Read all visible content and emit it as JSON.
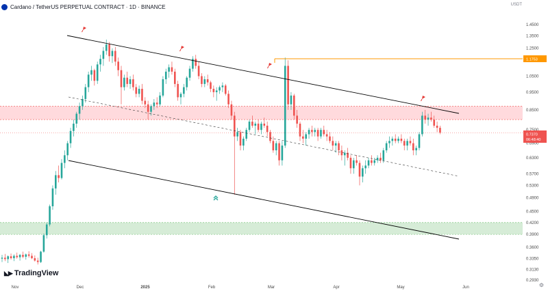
{
  "header": {
    "symbol_text": "Cardano / TetherUS PERPETUAL CONTRACT · 1D · BINANCE",
    "quote_currency": "USDT"
  },
  "brand": {
    "name": "TradingView",
    "logo_icon": "tradingview-logo-icon"
  },
  "price_tags": {
    "resistance_level": "1.1753",
    "current_price": "0.7370",
    "countdown": "06:48:40"
  },
  "colors": {
    "up": "#26a69a",
    "down": "#ef5350",
    "level_line": "#ff9800",
    "resistance_zone": "#ffcdd2",
    "support_zone": "#c8e6c9",
    "channel": "#000000"
  },
  "chart_data": {
    "type": "candlestick",
    "title": "Cardano / TetherUS PERPETUAL CONTRACT · 1D · BINANCE",
    "x_tick_labels": [
      "Nov",
      "Dec",
      "2025",
      "Feb",
      "Mar",
      "Apr",
      "May",
      "Jun"
    ],
    "y_tick_labels": [
      "1.4500",
      "1.3500",
      "1.2500",
      "1.1750",
      "1.0500",
      "0.9500",
      "0.8500",
      "0.7500",
      "0.6900",
      "0.6300",
      "0.5700",
      "0.5300",
      "0.4900",
      "0.4500",
      "0.4200",
      "0.3900",
      "0.3600",
      "0.3350",
      "0.3130",
      "0.2930"
    ],
    "y_scale": "log",
    "ylim": [
      0.293,
      1.45
    ],
    "horizontal_level": 1.1753,
    "current_price": 0.737,
    "resistance_zone": [
      0.8,
      0.87
    ],
    "support_zone": [
      0.39,
      0.42
    ],
    "series": [
      {
        "values": [
          [
            0.335,
            0.343,
            0.328,
            0.337
          ],
          [
            0.337,
            0.345,
            0.33,
            0.334
          ],
          [
            0.334,
            0.342,
            0.326,
            0.34
          ],
          [
            0.34,
            0.346,
            0.333,
            0.336
          ],
          [
            0.336,
            0.344,
            0.33,
            0.341
          ],
          [
            0.341,
            0.348,
            0.335,
            0.338
          ],
          [
            0.338,
            0.345,
            0.331,
            0.343
          ],
          [
            0.343,
            0.35,
            0.336,
            0.339
          ],
          [
            0.339,
            0.346,
            0.333,
            0.344
          ],
          [
            0.344,
            0.351,
            0.337,
            0.341
          ],
          [
            0.341,
            0.347,
            0.334,
            0.336
          ],
          [
            0.336,
            0.342,
            0.329,
            0.331
          ],
          [
            0.331,
            0.337,
            0.323,
            0.328
          ],
          [
            0.328,
            0.352,
            0.326,
            0.35
          ],
          [
            0.35,
            0.392,
            0.348,
            0.388
          ],
          [
            0.388,
            0.42,
            0.38,
            0.415
          ],
          [
            0.415,
            0.47,
            0.41,
            0.465
          ],
          [
            0.465,
            0.53,
            0.455,
            0.52
          ],
          [
            0.52,
            0.58,
            0.5,
            0.565
          ],
          [
            0.565,
            0.6,
            0.54,
            0.555
          ],
          [
            0.555,
            0.625,
            0.55,
            0.61
          ],
          [
            0.61,
            0.66,
            0.59,
            0.64
          ],
          [
            0.64,
            0.7,
            0.62,
            0.69
          ],
          [
            0.69,
            0.76,
            0.67,
            0.745
          ],
          [
            0.745,
            0.8,
            0.72,
            0.78
          ],
          [
            0.78,
            0.84,
            0.76,
            0.83
          ],
          [
            0.83,
            0.89,
            0.8,
            0.87
          ],
          [
            0.87,
            0.93,
            0.85,
            0.91
          ],
          [
            0.91,
            1.0,
            0.89,
            0.98
          ],
          [
            0.98,
            1.08,
            0.95,
            1.06
          ],
          [
            1.06,
            1.12,
            1.02,
            1.09
          ],
          [
            1.09,
            1.1,
            0.99,
            1.02
          ],
          [
            1.02,
            1.15,
            1.0,
            1.13
          ],
          [
            1.13,
            1.2,
            1.08,
            1.17
          ],
          [
            1.17,
            1.26,
            1.12,
            1.23
          ],
          [
            1.23,
            1.32,
            1.2,
            1.28
          ],
          [
            1.28,
            1.3,
            1.15,
            1.19
          ],
          [
            1.19,
            1.25,
            1.14,
            1.23
          ],
          [
            1.23,
            1.26,
            1.12,
            1.15
          ],
          [
            1.15,
            1.18,
            1.05,
            1.09
          ],
          [
            1.09,
            1.12,
            0.88,
            0.98
          ],
          [
            0.98,
            1.06,
            0.96,
            1.04
          ],
          [
            1.04,
            1.08,
            0.98,
            1.0
          ],
          [
            1.0,
            1.05,
            0.97,
            1.03
          ],
          [
            1.03,
            1.06,
            0.96,
            0.98
          ],
          [
            0.98,
            1.0,
            0.92,
            0.94
          ],
          [
            0.94,
            0.99,
            0.92,
            0.97
          ],
          [
            0.97,
            1.0,
            0.88,
            0.9
          ],
          [
            0.9,
            0.92,
            0.86,
            0.88
          ],
          [
            0.88,
            0.9,
            0.8,
            0.84
          ],
          [
            0.84,
            0.88,
            0.82,
            0.87
          ],
          [
            0.87,
            0.91,
            0.85,
            0.89
          ],
          [
            0.89,
            0.92,
            0.86,
            0.88
          ],
          [
            0.88,
            0.95,
            0.87,
            0.93
          ],
          [
            0.93,
            1.05,
            0.92,
            1.03
          ],
          [
            1.03,
            1.1,
            1.0,
            1.08
          ],
          [
            1.08,
            1.13,
            1.04,
            1.11
          ],
          [
            1.11,
            1.15,
            1.06,
            1.08
          ],
          [
            1.08,
            1.1,
            0.98,
            1.0
          ],
          [
            1.0,
            1.02,
            0.9,
            0.92
          ],
          [
            0.92,
            0.95,
            0.88,
            0.94
          ],
          [
            0.94,
            1.0,
            0.92,
            0.98
          ],
          [
            0.98,
            1.05,
            0.96,
            1.04
          ],
          [
            1.04,
            1.12,
            1.02,
            1.1
          ],
          [
            1.1,
            1.19,
            1.08,
            1.17
          ],
          [
            1.17,
            1.2,
            1.1,
            1.12
          ],
          [
            1.12,
            1.15,
            1.03,
            1.05
          ],
          [
            1.05,
            1.07,
            0.98,
            1.0
          ],
          [
            1.0,
            1.05,
            0.98,
            1.03
          ],
          [
            1.03,
            1.06,
            0.99,
            1.01
          ],
          [
            1.01,
            1.02,
            0.95,
            0.97
          ],
          [
            0.97,
            0.99,
            0.92,
            0.95
          ],
          [
            0.95,
            0.98,
            0.9,
            0.96
          ],
          [
            0.96,
            0.99,
            0.94,
            0.98
          ],
          [
            0.98,
            1.01,
            0.95,
            0.99
          ],
          [
            0.99,
            1.0,
            0.93,
            0.94
          ],
          [
            0.94,
            0.96,
            0.86,
            0.88
          ],
          [
            0.88,
            0.9,
            0.8,
            0.82
          ],
          [
            0.82,
            0.84,
            0.5,
            0.72
          ],
          [
            0.72,
            0.76,
            0.7,
            0.74
          ],
          [
            0.74,
            0.75,
            0.66,
            0.68
          ],
          [
            0.68,
            0.72,
            0.66,
            0.71
          ],
          [
            0.71,
            0.76,
            0.7,
            0.75
          ],
          [
            0.75,
            0.8,
            0.74,
            0.79
          ],
          [
            0.79,
            0.82,
            0.76,
            0.77
          ],
          [
            0.77,
            0.79,
            0.73,
            0.78
          ],
          [
            0.78,
            0.8,
            0.74,
            0.75
          ],
          [
            0.75,
            0.79,
            0.73,
            0.78
          ],
          [
            0.78,
            0.81,
            0.76,
            0.77
          ],
          [
            0.77,
            0.79,
            0.72,
            0.74
          ],
          [
            0.74,
            0.75,
            0.69,
            0.7
          ],
          [
            0.7,
            0.72,
            0.65,
            0.66
          ],
          [
            0.66,
            0.7,
            0.64,
            0.69
          ],
          [
            0.69,
            0.7,
            0.6,
            0.62
          ],
          [
            0.62,
            0.7,
            0.6,
            0.68
          ],
          [
            0.68,
            1.18,
            0.67,
            1.12
          ],
          [
            1.12,
            1.16,
            0.85,
            0.88
          ],
          [
            0.88,
            0.95,
            0.85,
            0.93
          ],
          [
            0.93,
            0.94,
            0.8,
            0.82
          ],
          [
            0.82,
            0.85,
            0.76,
            0.78
          ],
          [
            0.78,
            0.79,
            0.7,
            0.72
          ],
          [
            0.72,
            0.75,
            0.69,
            0.71
          ],
          [
            0.71,
            0.74,
            0.68,
            0.73
          ],
          [
            0.73,
            0.76,
            0.71,
            0.75
          ],
          [
            0.75,
            0.77,
            0.72,
            0.74
          ],
          [
            0.74,
            0.76,
            0.72,
            0.75
          ],
          [
            0.75,
            0.76,
            0.7,
            0.72
          ],
          [
            0.72,
            0.76,
            0.71,
            0.75
          ],
          [
            0.75,
            0.77,
            0.72,
            0.73
          ],
          [
            0.73,
            0.75,
            0.7,
            0.72
          ],
          [
            0.72,
            0.74,
            0.69,
            0.7
          ],
          [
            0.7,
            0.72,
            0.66,
            0.68
          ],
          [
            0.68,
            0.7,
            0.65,
            0.69
          ],
          [
            0.69,
            0.7,
            0.64,
            0.66
          ],
          [
            0.66,
            0.68,
            0.62,
            0.64
          ],
          [
            0.64,
            0.66,
            0.6,
            0.65
          ],
          [
            0.65,
            0.67,
            0.62,
            0.63
          ],
          [
            0.63,
            0.64,
            0.57,
            0.59
          ],
          [
            0.59,
            0.63,
            0.57,
            0.62
          ],
          [
            0.62,
            0.64,
            0.6,
            0.61
          ],
          [
            0.61,
            0.62,
            0.53,
            0.56
          ],
          [
            0.56,
            0.6,
            0.54,
            0.59
          ],
          [
            0.59,
            0.62,
            0.57,
            0.6
          ],
          [
            0.6,
            0.63,
            0.59,
            0.62
          ],
          [
            0.62,
            0.64,
            0.6,
            0.61
          ],
          [
            0.61,
            0.63,
            0.6,
            0.62
          ],
          [
            0.62,
            0.64,
            0.61,
            0.63
          ],
          [
            0.63,
            0.65,
            0.61,
            0.62
          ],
          [
            0.62,
            0.67,
            0.61,
            0.66
          ],
          [
            0.66,
            0.7,
            0.65,
            0.69
          ],
          [
            0.69,
            0.72,
            0.67,
            0.7
          ],
          [
            0.7,
            0.72,
            0.68,
            0.71
          ],
          [
            0.71,
            0.73,
            0.69,
            0.7
          ],
          [
            0.7,
            0.72,
            0.69,
            0.71
          ],
          [
            0.71,
            0.73,
            0.69,
            0.7
          ],
          [
            0.7,
            0.71,
            0.66,
            0.68
          ],
          [
            0.68,
            0.71,
            0.66,
            0.7
          ],
          [
            0.7,
            0.72,
            0.68,
            0.69
          ],
          [
            0.69,
            0.71,
            0.64,
            0.66
          ],
          [
            0.66,
            0.68,
            0.64,
            0.67
          ],
          [
            0.67,
            0.74,
            0.66,
            0.73
          ],
          [
            0.73,
            0.84,
            0.72,
            0.82
          ],
          [
            0.82,
            0.85,
            0.78,
            0.8
          ],
          [
            0.8,
            0.83,
            0.77,
            0.81
          ],
          [
            0.81,
            0.84,
            0.79,
            0.8
          ],
          [
            0.8,
            0.82,
            0.76,
            0.77
          ],
          [
            0.77,
            0.79,
            0.74,
            0.76
          ],
          [
            0.76,
            0.77,
            0.73,
            0.737
          ]
        ]
      }
    ]
  }
}
